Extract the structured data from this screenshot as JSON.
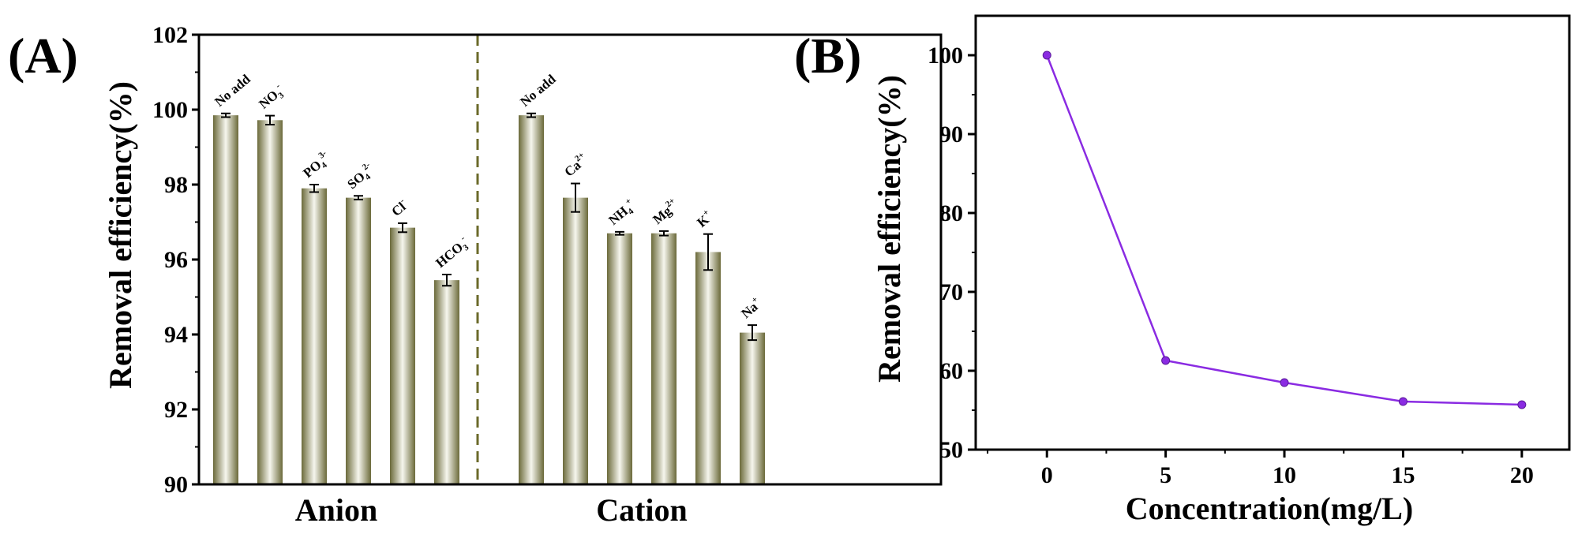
{
  "chart_data": [
    {
      "type": "bar",
      "panel_label": "(A)",
      "ylabel": "Removal efficiency(%)",
      "ylim": [
        90,
        102
      ],
      "yticks": [
        "90",
        "92",
        "94",
        "96",
        "98",
        "100",
        "102"
      ],
      "ytick_values": [
        90,
        92,
        94,
        96,
        98,
        100,
        102
      ],
      "groups": [
        {
          "name": "Anion",
          "bars": [
            {
              "label": "No add",
              "base": "No add",
              "sup": "",
              "sub": "",
              "value": 99.85,
              "error": 0.05
            },
            {
              "label": "NO3-",
              "base": "NO",
              "sup": "-",
              "sub": "3",
              "value": 99.72,
              "error": 0.12
            },
            {
              "label": "PO4 3-",
              "base": "PO",
              "sup": "3-",
              "sub": "4",
              "value": 97.9,
              "error": 0.1
            },
            {
              "label": "SO4 2-",
              "base": "SO",
              "sup": "2-",
              "sub": "4",
              "value": 97.65,
              "error": 0.05
            },
            {
              "label": "Cl-",
              "base": "Cl",
              "sup": "-",
              "sub": "",
              "value": 96.85,
              "error": 0.12
            },
            {
              "label": "HCO3-",
              "base": "HCO",
              "sup": "-",
              "sub": "3",
              "value": 95.45,
              "error": 0.15
            }
          ]
        },
        {
          "name": "Cation",
          "bars": [
            {
              "label": "No add",
              "base": "No add",
              "sup": "",
              "sub": "",
              "value": 99.85,
              "error": 0.05
            },
            {
              "label": "Ca2+",
              "base": "Ca",
              "sup": "2+",
              "sub": "",
              "value": 97.65,
              "error": 0.38
            },
            {
              "label": "NH4+",
              "base": "NH",
              "sup": "+",
              "sub": "4",
              "value": 96.7,
              "error": 0.04
            },
            {
              "label": "Mg2+",
              "base": "Mg",
              "sup": "2+",
              "sub": "",
              "value": 96.7,
              "error": 0.06
            },
            {
              "label": "K+",
              "base": "K",
              "sup": "+",
              "sub": "",
              "value": 96.2,
              "error": 0.48
            },
            {
              "label": "Na+",
              "base": "Na",
              "sup": "+",
              "sub": "",
              "value": 94.05,
              "error": 0.2
            }
          ]
        }
      ],
      "bar_color_dark": "#6b6a3a",
      "bar_color_light": "#f6f6ee",
      "divider_color": "#6b6a2a"
    },
    {
      "type": "line",
      "panel_label": "(B)",
      "xlabel": "Concentration(mg/L)",
      "ylabel": "Removal efficiency(%)",
      "x": [
        0,
        5,
        10,
        15,
        20
      ],
      "y": [
        100,
        61.3,
        58.5,
        56.1,
        55.7
      ],
      "xlim": [
        -3,
        22
      ],
      "ylim": [
        50,
        105
      ],
      "xticks": [
        "0",
        "5",
        "10",
        "15",
        "20"
      ],
      "xtick_values": [
        0,
        5,
        10,
        15,
        20
      ],
      "yticks": [
        "50",
        "60",
        "70",
        "80",
        "90",
        "100"
      ],
      "ytick_values": [
        50,
        60,
        70,
        80,
        90,
        100
      ],
      "line_color": "#8a2be2"
    }
  ]
}
